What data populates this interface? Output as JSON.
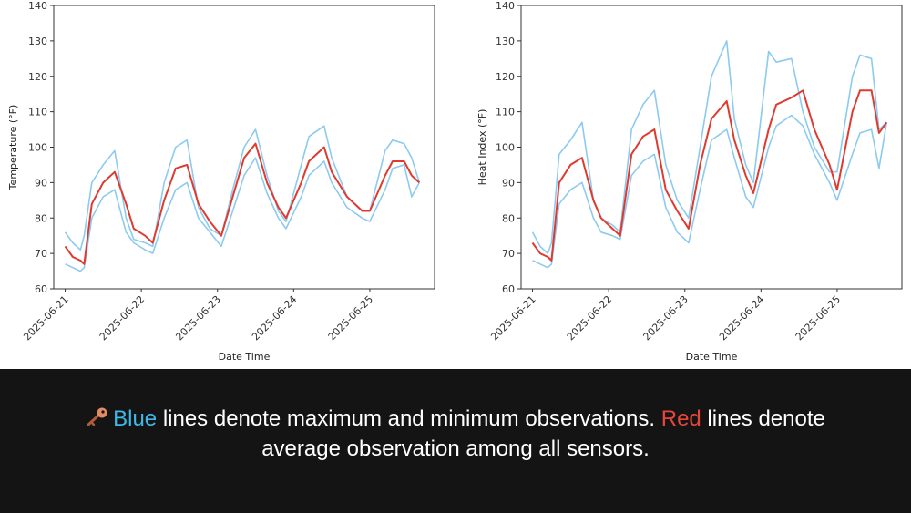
{
  "chart_data": [
    {
      "type": "line",
      "ylabel": "Temperature (°F)",
      "xlabel": "Date Time",
      "ylim": [
        60,
        140
      ],
      "yticks": [
        60,
        70,
        80,
        90,
        100,
        110,
        120,
        130,
        140
      ],
      "xlim": [
        -0.15,
        4.85
      ],
      "xtick_values": [
        0,
        1,
        2,
        3,
        4
      ],
      "xtick_labels": [
        "2025-06-21",
        "2025-06-22",
        "2025-06-23",
        "2025-06-24",
        "2025-06-25"
      ],
      "series": [
        {
          "name": "Maximum",
          "role": "max",
          "color": "#8ccbef",
          "x": [
            0,
            0.1,
            0.2,
            0.25,
            0.35,
            0.5,
            0.65,
            0.8,
            0.9,
            1.05,
            1.15,
            1.3,
            1.45,
            1.6,
            1.75,
            1.9,
            2.05,
            2.2,
            2.35,
            2.5,
            2.65,
            2.8,
            2.9,
            3.1,
            3.2,
            3.4,
            3.5,
            3.7,
            3.9,
            4.0,
            4.2,
            4.3,
            4.45,
            4.55,
            4.65
          ],
          "y": [
            76,
            73,
            71,
            75,
            90,
            95,
            99,
            80,
            74,
            73,
            72,
            90,
            100,
            102,
            83,
            77,
            75,
            88,
            100,
            105,
            92,
            82,
            79,
            95,
            103,
            106,
            97,
            86,
            82,
            82,
            99,
            102,
            101,
            97,
            90
          ]
        },
        {
          "name": "Average",
          "role": "avg",
          "color": "#e03a30",
          "x": [
            0,
            0.1,
            0.2,
            0.25,
            0.35,
            0.5,
            0.65,
            0.8,
            0.9,
            1.05,
            1.15,
            1.3,
            1.45,
            1.6,
            1.75,
            1.9,
            2.05,
            2.2,
            2.35,
            2.5,
            2.65,
            2.8,
            2.9,
            3.1,
            3.2,
            3.4,
            3.5,
            3.7,
            3.9,
            4.0,
            4.2,
            4.3,
            4.45,
            4.55,
            4.65
          ],
          "y": [
            72,
            69,
            68,
            67,
            84,
            90,
            93,
            84,
            77,
            75,
            73,
            85,
            94,
            95,
            84,
            79,
            75,
            86,
            97,
            101,
            90,
            83,
            80,
            90,
            96,
            100,
            93,
            86,
            82,
            82,
            92,
            96,
            96,
            92,
            90
          ]
        },
        {
          "name": "Minimum",
          "role": "min",
          "color": "#8ccbef",
          "x": [
            0,
            0.1,
            0.2,
            0.25,
            0.35,
            0.5,
            0.65,
            0.8,
            0.9,
            1.05,
            1.15,
            1.3,
            1.45,
            1.6,
            1.75,
            1.9,
            2.05,
            2.2,
            2.35,
            2.5,
            2.65,
            2.8,
            2.9,
            3.1,
            3.2,
            3.4,
            3.5,
            3.7,
            3.9,
            4.0,
            4.2,
            4.3,
            4.45,
            4.55,
            4.65
          ],
          "y": [
            67,
            66,
            65,
            66,
            80,
            86,
            88,
            76,
            73,
            71,
            70,
            80,
            88,
            90,
            80,
            76,
            72,
            82,
            92,
            97,
            87,
            80,
            77,
            86,
            92,
            96,
            90,
            83,
            80,
            79,
            88,
            94,
            95,
            86,
            90
          ]
        }
      ]
    },
    {
      "type": "line",
      "ylabel": "Heat Index (°F)",
      "xlabel": "Date Time",
      "ylim": [
        60,
        140
      ],
      "yticks": [
        60,
        70,
        80,
        90,
        100,
        110,
        120,
        130,
        140
      ],
      "xlim": [
        -0.15,
        4.85
      ],
      "xtick_values": [
        0,
        1,
        2,
        3,
        4
      ],
      "xtick_labels": [
        "2025-06-21",
        "2025-06-22",
        "2025-06-23",
        "2025-06-24",
        "2025-06-25"
      ],
      "series": [
        {
          "name": "Maximum",
          "role": "max",
          "color": "#8ccbef",
          "x": [
            0,
            0.1,
            0.2,
            0.25,
            0.35,
            0.5,
            0.65,
            0.8,
            0.9,
            1.05,
            1.15,
            1.3,
            1.45,
            1.6,
            1.75,
            1.9,
            2.05,
            2.2,
            2.35,
            2.55,
            2.65,
            2.8,
            2.9,
            3.1,
            3.2,
            3.4,
            3.55,
            3.7,
            3.9,
            4.0,
            4.2,
            4.3,
            4.45,
            4.55,
            4.65
          ],
          "y": [
            76,
            72,
            70,
            73,
            98,
            102,
            107,
            85,
            80,
            78,
            76,
            105,
            112,
            116,
            95,
            85,
            80,
            100,
            120,
            130,
            108,
            95,
            90,
            127,
            124,
            125,
            110,
            100,
            93,
            93,
            120,
            126,
            125,
            105,
            107
          ]
        },
        {
          "name": "Average",
          "role": "avg",
          "color": "#e03a30",
          "x": [
            0,
            0.1,
            0.2,
            0.25,
            0.35,
            0.5,
            0.65,
            0.8,
            0.9,
            1.05,
            1.15,
            1.3,
            1.45,
            1.6,
            1.75,
            1.9,
            2.05,
            2.2,
            2.35,
            2.55,
            2.65,
            2.8,
            2.9,
            3.1,
            3.2,
            3.4,
            3.55,
            3.7,
            3.9,
            4.0,
            4.2,
            4.3,
            4.45,
            4.55,
            4.65
          ],
          "y": [
            73,
            70,
            69,
            68,
            90,
            95,
            97,
            85,
            80,
            77,
            75,
            98,
            103,
            105,
            88,
            82,
            77,
            95,
            108,
            113,
            102,
            92,
            87,
            105,
            112,
            114,
            116,
            105,
            95,
            88,
            110,
            116,
            116,
            104,
            107
          ]
        },
        {
          "name": "Minimum",
          "role": "min",
          "color": "#8ccbef",
          "x": [
            0,
            0.1,
            0.2,
            0.25,
            0.35,
            0.5,
            0.65,
            0.8,
            0.9,
            1.05,
            1.15,
            1.3,
            1.45,
            1.6,
            1.75,
            1.9,
            2.05,
            2.2,
            2.35,
            2.55,
            2.65,
            2.8,
            2.9,
            3.1,
            3.2,
            3.4,
            3.55,
            3.7,
            3.9,
            4.0,
            4.2,
            4.3,
            4.45,
            4.55,
            4.65
          ],
          "y": [
            68,
            67,
            66,
            67,
            84,
            88,
            90,
            80,
            76,
            75,
            74,
            92,
            96,
            98,
            83,
            76,
            73,
            88,
            102,
            105,
            97,
            86,
            83,
            100,
            106,
            109,
            106,
            98,
            90,
            85,
            98,
            104,
            105,
            94,
            107
          ]
        }
      ]
    }
  ],
  "caption": {
    "icon": "key-icon",
    "blue_word": "Blue",
    "text_part_1": " lines denote maximum and minimum observations. ",
    "red_word": "Red",
    "text_part_2": " lines denote average observation among all sensors.",
    "blue_color": "#3db8e8",
    "red_color": "#e8453c"
  }
}
